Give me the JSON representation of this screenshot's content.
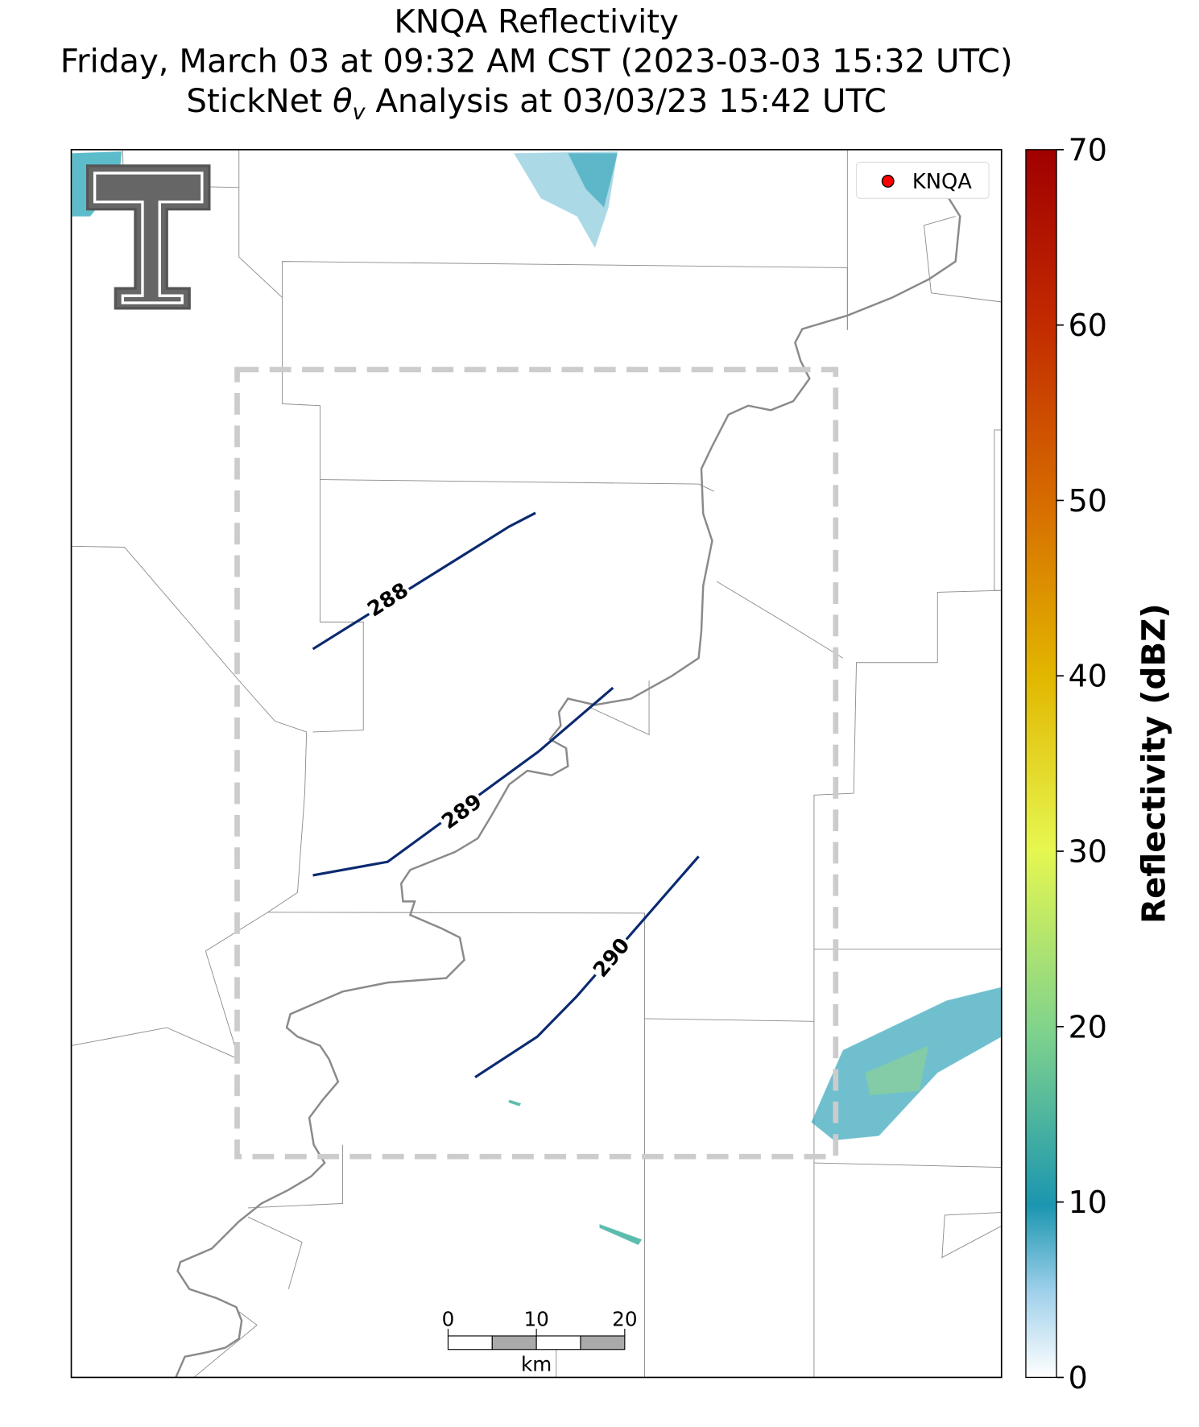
{
  "title": [
    "KNQA Reflectivity",
    "Friday, March 03 at 09:32 AM CST (2023-03-03 15:32 UTC)"
  ],
  "subtitle": {
    "prefix": "StickNet ",
    "symbol": "θ",
    "subscript": "v",
    "suffix": " Analysis at 03/03/23 15:42 UTC"
  },
  "legend": {
    "label": "KNQA",
    "color": "#ff0000"
  },
  "contours": {
    "levels": [
      288,
      289,
      290
    ],
    "color": "#0b2a70"
  },
  "colorbar": {
    "label": "Reflectivity (dBZ)",
    "lim": [
      0,
      70
    ],
    "ticks": [
      0,
      10,
      20,
      30,
      40,
      50,
      60,
      70
    ]
  },
  "scale_bar": {
    "ticks": [
      0,
      10,
      20
    ],
    "unit": "km"
  }
}
